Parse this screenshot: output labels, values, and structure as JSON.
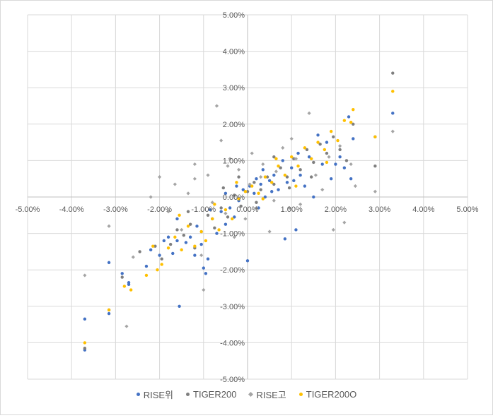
{
  "chart_data": {
    "type": "scatter",
    "x_ticks": [
      "-5.00%",
      "-4.00%",
      "-3.00%",
      "-2.00%",
      "-1.00%",
      "0.00%",
      "1.00%",
      "2.00%",
      "3.00%",
      "4.00%",
      "5.00%"
    ],
    "y_ticks": [
      "5.00%",
      "4.00%",
      "3.00%",
      "2.00%",
      "1.00%",
      "0.00%",
      "-1.00%",
      "-2.00%",
      "-3.00%",
      "-4.00%",
      "-5.00%"
    ],
    "xlim": [
      -5,
      5
    ],
    "ylim": [
      -5,
      5
    ],
    "grid": true,
    "legend_position": "bottom",
    "series": [
      {
        "name": "RISE위",
        "color": "#4472c4",
        "marker": "circle",
        "points": [
          [
            -3.7,
            -4.2
          ],
          [
            -3.7,
            -3.35
          ],
          [
            -3.15,
            -3.2
          ],
          [
            -3.15,
            -1.8
          ],
          [
            -2.7,
            -2.4
          ],
          [
            -2.7,
            -2.35
          ],
          [
            -2.85,
            -2.1
          ],
          [
            -2.3,
            -1.9
          ],
          [
            -2.2,
            -1.45
          ],
          [
            -2.0,
            -1.6
          ],
          [
            -1.9,
            -1.2
          ],
          [
            -1.8,
            -1.1
          ],
          [
            -1.7,
            -1.55
          ],
          [
            -1.6,
            -1.2
          ],
          [
            -1.55,
            -3.0
          ],
          [
            -1.4,
            -1.25
          ],
          [
            -1.3,
            -1.1
          ],
          [
            -1.2,
            -1.6
          ],
          [
            -1.15,
            -0.8
          ],
          [
            -1.05,
            -1.3
          ],
          [
            -1.0,
            -1.95
          ],
          [
            -0.95,
            -2.1
          ],
          [
            -0.9,
            -1.7
          ],
          [
            -0.8,
            -0.6
          ],
          [
            -0.7,
            -1.0
          ],
          [
            -0.6,
            -0.4
          ],
          [
            -0.5,
            -0.75
          ],
          [
            -0.4,
            -0.3
          ],
          [
            -0.3,
            -0.55
          ],
          [
            -0.2,
            -0.1
          ],
          [
            -0.1,
            0.2
          ],
          [
            0.0,
            -1.75
          ],
          [
            0.05,
            0.3
          ],
          [
            0.15,
            0.1
          ],
          [
            0.2,
            0.5
          ],
          [
            0.3,
            0.35
          ],
          [
            0.4,
            0.0
          ],
          [
            0.5,
            0.45
          ],
          [
            0.6,
            0.6
          ],
          [
            0.7,
            0.2
          ],
          [
            0.8,
            1.0
          ],
          [
            0.85,
            -1.15
          ],
          [
            0.9,
            0.4
          ],
          [
            1.0,
            0.8
          ],
          [
            1.1,
            -0.9
          ],
          [
            1.15,
            1.2
          ],
          [
            1.2,
            0.6
          ],
          [
            1.3,
            0.3
          ],
          [
            1.4,
            1.1
          ],
          [
            1.5,
            0.0
          ],
          [
            1.6,
            1.7
          ],
          [
            1.7,
            0.9
          ],
          [
            1.8,
            1.5
          ],
          [
            1.9,
            0.5
          ],
          [
            2.0,
            0.9
          ],
          [
            2.1,
            1.1
          ],
          [
            2.2,
            0.8
          ],
          [
            2.3,
            2.2
          ],
          [
            2.4,
            1.6
          ],
          [
            2.35,
            0.5
          ],
          [
            3.3,
            2.3
          ],
          [
            2.9,
            1.65
          ],
          [
            -0.5,
            0.1
          ],
          [
            -0.25,
            0.3
          ],
          [
            0.25,
            -0.3
          ],
          [
            0.55,
            0.15
          ],
          [
            -0.85,
            -0.35
          ],
          [
            1.05,
            0.45
          ],
          [
            -1.6,
            -0.6
          ],
          [
            0.35,
            0.75
          ]
        ]
      },
      {
        "name": "TIGER200",
        "color": "#7f7f7f",
        "marker": "circle",
        "points": [
          [
            -3.7,
            -4.15
          ],
          [
            -3.15,
            -3.1
          ],
          [
            -2.85,
            -2.2
          ],
          [
            -2.45,
            -1.5
          ],
          [
            -2.1,
            -1.35
          ],
          [
            -1.95,
            -1.7
          ],
          [
            -1.75,
            -1.3
          ],
          [
            -1.6,
            -0.9
          ],
          [
            -1.45,
            -1.05
          ],
          [
            -1.3,
            -0.75
          ],
          [
            -1.2,
            -1.4
          ],
          [
            -1.05,
            -0.95
          ],
          [
            -0.9,
            -0.5
          ],
          [
            -0.75,
            -0.85
          ],
          [
            -0.6,
            -0.3
          ],
          [
            -0.45,
            -0.55
          ],
          [
            -0.3,
            0.05
          ],
          [
            -0.15,
            -0.25
          ],
          [
            0.0,
            0.15
          ],
          [
            0.15,
            0.4
          ],
          [
            0.3,
            0.2
          ],
          [
            0.45,
            0.55
          ],
          [
            0.6,
            0.35
          ],
          [
            0.75,
            0.8
          ],
          [
            0.9,
            0.55
          ],
          [
            1.05,
            1.05
          ],
          [
            1.2,
            0.75
          ],
          [
            1.35,
            1.3
          ],
          [
            1.5,
            0.95
          ],
          [
            1.65,
            1.45
          ],
          [
            1.8,
            1.2
          ],
          [
            1.95,
            1.65
          ],
          [
            2.1,
            1.3
          ],
          [
            2.25,
            1.0
          ],
          [
            2.4,
            2.0
          ],
          [
            2.9,
            0.85
          ],
          [
            3.3,
            3.4
          ],
          [
            -0.55,
            0.25
          ],
          [
            0.2,
            -0.15
          ],
          [
            0.95,
            0.25
          ],
          [
            -1.35,
            -0.4
          ],
          [
            0.6,
            1.1
          ],
          [
            1.45,
            0.55
          ],
          [
            -0.2,
            0.55
          ]
        ]
      },
      {
        "name": "RISE고",
        "color": "#a5a5a5",
        "marker": "diamond",
        "points": [
          [
            -3.7,
            -2.15
          ],
          [
            -3.15,
            -0.8
          ],
          [
            -2.75,
            -3.55
          ],
          [
            -2.6,
            -1.65
          ],
          [
            -2.2,
            0.0
          ],
          [
            -2.0,
            0.55
          ],
          [
            -1.8,
            -0.4
          ],
          [
            -1.65,
            0.35
          ],
          [
            -1.5,
            -0.9
          ],
          [
            -1.35,
            0.1
          ],
          [
            -1.2,
            0.9
          ],
          [
            -1.05,
            -1.6
          ],
          [
            -1.0,
            -2.55
          ],
          [
            -0.9,
            0.6
          ],
          [
            -0.7,
            2.5
          ],
          [
            -0.6,
            1.55
          ],
          [
            -0.5,
            -0.45
          ],
          [
            -0.4,
            1.05
          ],
          [
            -0.3,
            -1.1
          ],
          [
            -0.2,
            0.75
          ],
          [
            -0.05,
            -0.6
          ],
          [
            0.1,
            1.2
          ],
          [
            0.2,
            -0.3
          ],
          [
            0.35,
            0.9
          ],
          [
            0.5,
            -0.95
          ],
          [
            0.65,
            0.7
          ],
          [
            0.8,
            1.35
          ],
          [
            0.95,
            -0.3
          ],
          [
            1.1,
            1.05
          ],
          [
            1.2,
            -0.2
          ],
          [
            1.4,
            2.3
          ],
          [
            1.55,
            0.6
          ],
          [
            1.7,
            0.2
          ],
          [
            1.85,
            1.1
          ],
          [
            1.95,
            -0.9
          ],
          [
            2.1,
            1.4
          ],
          [
            2.2,
            -0.7
          ],
          [
            2.35,
            0.9
          ],
          [
            2.45,
            0.3
          ],
          [
            2.9,
            0.15
          ],
          [
            3.3,
            1.8
          ],
          [
            -0.8,
            -0.15
          ],
          [
            0.05,
            0.35
          ],
          [
            0.6,
            -0.1
          ],
          [
            -1.2,
            0.5
          ],
          [
            1.0,
            1.6
          ],
          [
            -0.45,
            0.85
          ],
          [
            0.3,
            0.55
          ]
        ]
      },
      {
        "name": "TIGER200O",
        "color": "#ffc000",
        "marker": "circle",
        "points": [
          [
            -3.7,
            -4.0
          ],
          [
            -3.15,
            -3.1
          ],
          [
            -2.8,
            -2.45
          ],
          [
            -2.65,
            -2.55
          ],
          [
            -2.3,
            -2.15
          ],
          [
            -2.15,
            -1.35
          ],
          [
            -1.95,
            -1.85
          ],
          [
            -1.8,
            -1.4
          ],
          [
            -1.65,
            -1.1
          ],
          [
            -1.5,
            -1.45
          ],
          [
            -1.35,
            -0.8
          ],
          [
            -1.2,
            -1.35
          ],
          [
            -1.05,
            -0.95
          ],
          [
            -0.95,
            -1.2
          ],
          [
            -0.8,
            -0.6
          ],
          [
            -0.65,
            -0.9
          ],
          [
            -0.5,
            -0.35
          ],
          [
            -0.35,
            -0.6
          ],
          [
            -0.2,
            -0.05
          ],
          [
            -0.05,
            0.15
          ],
          [
            0.1,
            0.3
          ],
          [
            0.25,
            0.1
          ],
          [
            0.4,
            0.55
          ],
          [
            0.55,
            0.4
          ],
          [
            0.7,
            0.85
          ],
          [
            0.85,
            0.6
          ],
          [
            1.0,
            1.1
          ],
          [
            1.15,
            0.85
          ],
          [
            1.3,
            1.35
          ],
          [
            1.45,
            1.05
          ],
          [
            1.6,
            1.5
          ],
          [
            1.75,
            1.3
          ],
          [
            1.9,
            1.8
          ],
          [
            2.05,
            1.55
          ],
          [
            2.2,
            2.1
          ],
          [
            2.35,
            2.05
          ],
          [
            2.4,
            2.4
          ],
          [
            2.9,
            1.65
          ],
          [
            3.3,
            2.9
          ],
          [
            -0.75,
            -0.2
          ],
          [
            0.35,
            -0.05
          ],
          [
            1.1,
            0.3
          ],
          [
            -1.55,
            -0.5
          ],
          [
            0.65,
            1.05
          ],
          [
            -0.25,
            0.4
          ],
          [
            1.8,
            0.95
          ],
          [
            -2.05,
            -2.0
          ]
        ]
      }
    ]
  }
}
